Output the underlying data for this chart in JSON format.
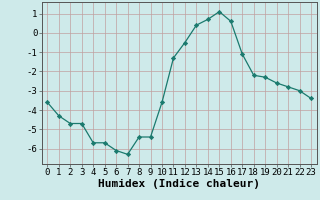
{
  "x": [
    0,
    1,
    2,
    3,
    4,
    5,
    6,
    7,
    8,
    9,
    10,
    11,
    12,
    13,
    14,
    15,
    16,
    17,
    18,
    19,
    20,
    21,
    22,
    23
  ],
  "y": [
    -3.6,
    -4.3,
    -4.7,
    -4.7,
    -5.7,
    -5.7,
    -6.1,
    -6.3,
    -5.4,
    -5.4,
    -3.6,
    -1.3,
    -0.5,
    0.4,
    0.7,
    1.1,
    0.6,
    -1.1,
    -2.2,
    -2.3,
    -2.6,
    -2.8,
    -3.0,
    -3.4
  ],
  "xlabel": "Humidex (Indice chaleur)",
  "xlim": [
    -0.5,
    23.5
  ],
  "ylim": [
    -6.8,
    1.6
  ],
  "yticks": [
    1,
    0,
    -1,
    -2,
    -3,
    -4,
    -5,
    -6
  ],
  "xticks": [
    0,
    1,
    2,
    3,
    4,
    5,
    6,
    7,
    8,
    9,
    10,
    11,
    12,
    13,
    14,
    15,
    16,
    17,
    18,
    19,
    20,
    21,
    22,
    23
  ],
  "line_color": "#1a7a6e",
  "marker": "D",
  "marker_size": 2.2,
  "bg_color": "#ceeaea",
  "grid_color": "#c0a0a0",
  "xlabel_fontsize": 8,
  "tick_fontsize": 6.5
}
